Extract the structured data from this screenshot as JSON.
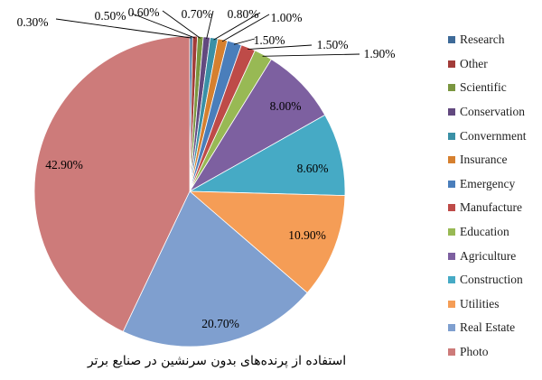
{
  "chart_data": {
    "type": "pie",
    "title": "",
    "caption": "استفاده از پرنده‌های بدون سرنشین در صنایع برتر",
    "slices": [
      {
        "label": "Research",
        "value": 0.3,
        "display": "0.30%",
        "color": "#3E6A98"
      },
      {
        "label": "Other",
        "value": 0.5,
        "display": "0.50%",
        "color": "#A23C39"
      },
      {
        "label": "Scientific",
        "value": 0.6,
        "display": "0.60%",
        "color": "#7A9640"
      },
      {
        "label": "Conservation",
        "value": 0.7,
        "display": "0.70%",
        "color": "#62497F"
      },
      {
        "label": "Convernment",
        "value": 0.8,
        "display": "0.80%",
        "color": "#3A90A6"
      },
      {
        "label": "Insurance",
        "value": 1.0,
        "display": "1.00%",
        "color": "#D6802F"
      },
      {
        "label": "Emergency",
        "value": 1.5,
        "display": "1.50%",
        "color": "#4A7EBB"
      },
      {
        "label": "Manufacture",
        "value": 1.5,
        "display": "1.50%",
        "color": "#BE4B48"
      },
      {
        "label": "Education",
        "value": 1.9,
        "display": "1.90%",
        "color": "#98B954"
      },
      {
        "label": "Agriculture",
        "value": 8.0,
        "display": "8.00%",
        "color": "#7D60A0"
      },
      {
        "label": "Construction",
        "value": 8.6,
        "display": "8.60%",
        "color": "#46AAC5"
      },
      {
        "label": "Utilities",
        "value": 10.9,
        "display": "10.90%",
        "color": "#F59D56"
      },
      {
        "label": "Real Estate",
        "value": 20.7,
        "display": "20.70%",
        "color": "#7F9FCF"
      },
      {
        "label": "Photo",
        "value": 42.9,
        "display": "42.90%",
        "color": "#CD7B7A"
      }
    ],
    "legend_position": "right"
  }
}
